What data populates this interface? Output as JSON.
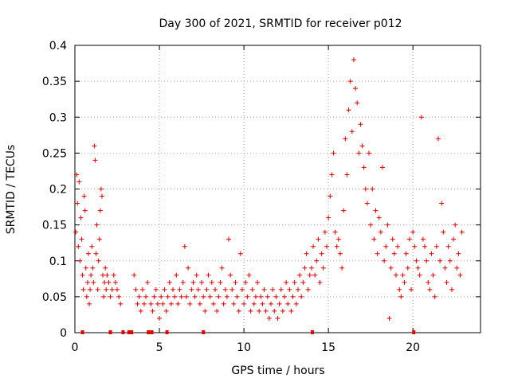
{
  "chart_data": {
    "type": "scatter",
    "title": "Day 300 of 2021, SRMTID for receiver p012",
    "xlabel": "GPS time / hours",
    "ylabel": "SRMTID / TECUs",
    "xlim": [
      0,
      24
    ],
    "ylim": [
      0,
      0.4
    ],
    "x_ticks": [
      0,
      5,
      10,
      15,
      20
    ],
    "x_tick_labels": [
      "0",
      "5",
      "10",
      "15",
      "20"
    ],
    "y_ticks": [
      0,
      0.05,
      0.1,
      0.15,
      0.2,
      0.25,
      0.3,
      0.35,
      0.4
    ],
    "y_tick_labels": [
      "0",
      "0.05",
      "0.1",
      "0.15",
      "0.2",
      "0.25",
      "0.3",
      "0.35",
      "0.4"
    ],
    "grid": true,
    "marker": "plus",
    "color": "#e00000",
    "series": [
      {
        "name": "SRMTID",
        "points": [
          [
            0.05,
            0.14
          ],
          [
            0.1,
            0.22
          ],
          [
            0.15,
            0.18
          ],
          [
            0.2,
            0.12
          ],
          [
            0.25,
            0.21
          ],
          [
            0.3,
            0.1
          ],
          [
            0.35,
            0.16
          ],
          [
            0.4,
            0.13
          ],
          [
            0.45,
            0.08
          ],
          [
            0.5,
            0.06
          ],
          [
            0.55,
            0.19
          ],
          [
            0.6,
            0.17
          ],
          [
            0.65,
            0.09
          ],
          [
            0.7,
            0.05
          ],
          [
            0.75,
            0.07
          ],
          [
            0.8,
            0.11
          ],
          [
            0.85,
            0.04
          ],
          [
            0.9,
            0.06
          ],
          [
            0.95,
            0.08
          ],
          [
            1.0,
            0.12
          ],
          [
            1.05,
            0.09
          ],
          [
            1.1,
            0.07
          ],
          [
            1.15,
            0.26
          ],
          [
            1.2,
            0.24
          ],
          [
            1.25,
            0.11
          ],
          [
            1.3,
            0.15
          ],
          [
            1.35,
            0.06
          ],
          [
            1.4,
            0.1
          ],
          [
            1.45,
            0.13
          ],
          [
            1.5,
            0.17
          ],
          [
            1.55,
            0.2
          ],
          [
            1.6,
            0.19
          ],
          [
            1.65,
            0.08
          ],
          [
            1.7,
            0.05
          ],
          [
            1.75,
            0.07
          ],
          [
            1.8,
            0.09
          ],
          [
            1.85,
            0.06
          ],
          [
            1.9,
            0.08
          ],
          [
            2.0,
            0.07
          ],
          [
            2.1,
            0.05
          ],
          [
            2.2,
            0.06
          ],
          [
            2.3,
            0.08
          ],
          [
            2.4,
            0.07
          ],
          [
            2.5,
            0.06
          ],
          [
            2.6,
            0.05
          ],
          [
            2.7,
            0.04
          ],
          [
            3.5,
            0.08
          ],
          [
            3.6,
            0.06
          ],
          [
            3.7,
            0.04
          ],
          [
            3.8,
            0.05
          ],
          [
            3.9,
            0.03
          ],
          [
            4.0,
            0.06
          ],
          [
            4.1,
            0.04
          ],
          [
            4.2,
            0.05
          ],
          [
            4.3,
            0.07
          ],
          [
            4.5,
            0.04
          ],
          [
            4.6,
            0.03
          ],
          [
            4.7,
            0.05
          ],
          [
            4.8,
            0.06
          ],
          [
            4.9,
            0.04
          ],
          [
            5.0,
            0.02
          ],
          [
            5.1,
            0.05
          ],
          [
            5.2,
            0.04
          ],
          [
            5.3,
            0.06
          ],
          [
            5.4,
            0.03
          ],
          [
            5.5,
            0.05
          ],
          [
            5.6,
            0.07
          ],
          [
            5.7,
            0.04
          ],
          [
            5.8,
            0.06
          ],
          [
            5.9,
            0.05
          ],
          [
            6.0,
            0.08
          ],
          [
            6.1,
            0.04
          ],
          [
            6.2,
            0.06
          ],
          [
            6.3,
            0.05
          ],
          [
            6.4,
            0.07
          ],
          [
            6.5,
            0.12
          ],
          [
            6.6,
            0.05
          ],
          [
            6.7,
            0.09
          ],
          [
            6.8,
            0.04
          ],
          [
            6.9,
            0.06
          ],
          [
            7.0,
            0.07
          ],
          [
            7.1,
            0.05
          ],
          [
            7.2,
            0.08
          ],
          [
            7.3,
            0.06
          ],
          [
            7.4,
            0.04
          ],
          [
            7.5,
            0.07
          ],
          [
            7.6,
            0.05
          ],
          [
            7.7,
            0.03
          ],
          [
            7.8,
            0.06
          ],
          [
            7.9,
            0.08
          ],
          [
            8.0,
            0.05
          ],
          [
            8.1,
            0.07
          ],
          [
            8.2,
            0.04
          ],
          [
            8.3,
            0.06
          ],
          [
            8.4,
            0.03
          ],
          [
            8.5,
            0.05
          ],
          [
            8.6,
            0.07
          ],
          [
            8.7,
            0.09
          ],
          [
            8.8,
            0.04
          ],
          [
            8.9,
            0.06
          ],
          [
            9.0,
            0.05
          ],
          [
            9.1,
            0.13
          ],
          [
            9.2,
            0.08
          ],
          [
            9.3,
            0.06
          ],
          [
            9.4,
            0.04
          ],
          [
            9.5,
            0.07
          ],
          [
            9.6,
            0.05
          ],
          [
            9.7,
            0.03
          ],
          [
            9.8,
            0.11
          ],
          [
            9.9,
            0.06
          ],
          [
            10.0,
            0.04
          ],
          [
            10.1,
            0.07
          ],
          [
            10.2,
            0.05
          ],
          [
            10.3,
            0.08
          ],
          [
            10.4,
            0.03
          ],
          [
            10.5,
            0.06
          ],
          [
            10.6,
            0.04
          ],
          [
            10.7,
            0.05
          ],
          [
            10.8,
            0.07
          ],
          [
            10.9,
            0.03
          ],
          [
            11.0,
            0.05
          ],
          [
            11.1,
            0.04
          ],
          [
            11.2,
            0.06
          ],
          [
            11.3,
            0.03
          ],
          [
            11.4,
            0.05
          ],
          [
            11.5,
            0.02
          ],
          [
            11.6,
            0.04
          ],
          [
            11.7,
            0.06
          ],
          [
            11.8,
            0.03
          ],
          [
            11.9,
            0.05
          ],
          [
            12.0,
            0.02
          ],
          [
            12.1,
            0.04
          ],
          [
            12.2,
            0.06
          ],
          [
            12.3,
            0.03
          ],
          [
            12.4,
            0.05
          ],
          [
            12.5,
            0.07
          ],
          [
            12.6,
            0.04
          ],
          [
            12.7,
            0.06
          ],
          [
            12.8,
            0.03
          ],
          [
            12.9,
            0.05
          ],
          [
            13.0,
            0.07
          ],
          [
            13.1,
            0.04
          ],
          [
            13.2,
            0.06
          ],
          [
            13.3,
            0.08
          ],
          [
            13.4,
            0.05
          ],
          [
            13.5,
            0.07
          ],
          [
            13.6,
            0.09
          ],
          [
            13.7,
            0.11
          ],
          [
            13.8,
            0.06
          ],
          [
            13.9,
            0.08
          ],
          [
            14.0,
            0.09
          ],
          [
            14.1,
            0.12
          ],
          [
            14.2,
            0.08
          ],
          [
            14.3,
            0.1
          ],
          [
            14.4,
            0.13
          ],
          [
            14.5,
            0.07
          ],
          [
            14.6,
            0.11
          ],
          [
            14.7,
            0.09
          ],
          [
            14.8,
            0.14
          ],
          [
            14.9,
            0.12
          ],
          [
            15.0,
            0.16
          ],
          [
            15.1,
            0.19
          ],
          [
            15.2,
            0.22
          ],
          [
            15.3,
            0.25
          ],
          [
            15.4,
            0.14
          ],
          [
            15.5,
            0.12
          ],
          [
            15.6,
            0.13
          ],
          [
            15.7,
            0.11
          ],
          [
            15.8,
            0.09
          ],
          [
            15.9,
            0.17
          ],
          [
            16.0,
            0.27
          ],
          [
            16.1,
            0.22
          ],
          [
            16.2,
            0.31
          ],
          [
            16.3,
            0.35
          ],
          [
            16.4,
            0.28
          ],
          [
            16.5,
            0.38
          ],
          [
            16.6,
            0.34
          ],
          [
            16.7,
            0.32
          ],
          [
            16.8,
            0.25
          ],
          [
            16.9,
            0.29
          ],
          [
            17.0,
            0.26
          ],
          [
            17.1,
            0.23
          ],
          [
            17.2,
            0.2
          ],
          [
            17.3,
            0.18
          ],
          [
            17.4,
            0.25
          ],
          [
            17.5,
            0.15
          ],
          [
            17.6,
            0.2
          ],
          [
            17.7,
            0.13
          ],
          [
            17.8,
            0.17
          ],
          [
            17.9,
            0.11
          ],
          [
            18.0,
            0.16
          ],
          [
            18.1,
            0.14
          ],
          [
            18.2,
            0.23
          ],
          [
            18.3,
            0.1
          ],
          [
            18.4,
            0.12
          ],
          [
            18.5,
            0.15
          ],
          [
            18.6,
            0.02
          ],
          [
            18.7,
            0.09
          ],
          [
            18.8,
            0.13
          ],
          [
            18.9,
            0.11
          ],
          [
            19.0,
            0.08
          ],
          [
            19.1,
            0.12
          ],
          [
            19.2,
            0.06
          ],
          [
            19.3,
            0.05
          ],
          [
            19.4,
            0.08
          ],
          [
            19.5,
            0.07
          ],
          [
            19.6,
            0.11
          ],
          [
            19.7,
            0.09
          ],
          [
            19.8,
            0.13
          ],
          [
            19.9,
            0.06
          ],
          [
            20.0,
            0.14
          ],
          [
            20.1,
            0.12
          ],
          [
            20.2,
            0.1
          ],
          [
            20.3,
            0.09
          ],
          [
            20.4,
            0.08
          ],
          [
            20.5,
            0.3
          ],
          [
            20.6,
            0.13
          ],
          [
            20.7,
            0.12
          ],
          [
            20.8,
            0.1
          ],
          [
            20.9,
            0.07
          ],
          [
            21.0,
            0.06
          ],
          [
            21.1,
            0.11
          ],
          [
            21.2,
            0.08
          ],
          [
            21.3,
            0.05
          ],
          [
            21.4,
            0.12
          ],
          [
            21.5,
            0.27
          ],
          [
            21.6,
            0.1
          ],
          [
            21.7,
            0.18
          ],
          [
            21.8,
            0.14
          ],
          [
            21.9,
            0.09
          ],
          [
            22.0,
            0.07
          ],
          [
            22.1,
            0.12
          ],
          [
            22.2,
            0.1
          ],
          [
            22.3,
            0.06
          ],
          [
            22.4,
            0.13
          ],
          [
            22.5,
            0.15
          ],
          [
            22.6,
            0.09
          ],
          [
            22.7,
            0.11
          ],
          [
            22.8,
            0.08
          ],
          [
            22.9,
            0.14
          ]
        ]
      }
    ],
    "gap_markers_x": [
      0.45,
      2.1,
      2.85,
      3.2,
      3.35,
      4.35,
      4.55,
      5.45,
      7.6,
      14.05,
      20.05
    ]
  }
}
